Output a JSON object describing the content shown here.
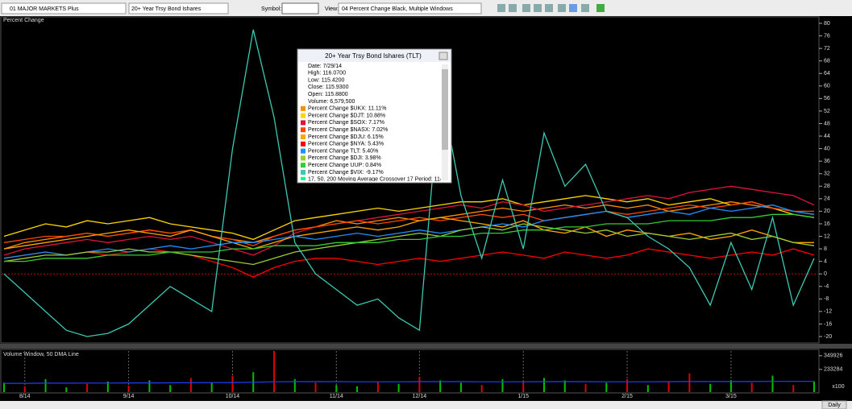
{
  "toolbar": {
    "workspace": "01 MAJOR MARKETS Plus",
    "security": "20+ Year Trsy Bond Ishares",
    "symbol_label": "Symbol:",
    "view_label": "View:",
    "view": "04 Percent Change Black, Multiple Windows"
  },
  "popup": {
    "title": "20+ Year Trsy Bond Ishares (TLT)",
    "lines": [
      "Date: 7/29/14",
      "High: 116.0700",
      "Low: 115.4200",
      "Close: 115.9300",
      "Open: 115.8800",
      "Volume: 6,579,500"
    ],
    "footer": "17, 50, 200 Moving Average Crossover 17 Period: 114.0794"
  },
  "status": {
    "period": "Daily"
  },
  "chart_data": [
    {
      "type": "line",
      "title": "Percent Change",
      "ylim": [
        -20,
        80
      ],
      "yticks": [
        80,
        76,
        72,
        68,
        64,
        60,
        56,
        52,
        48,
        44,
        40,
        36,
        32,
        28,
        24,
        20,
        16,
        12,
        8,
        4,
        0,
        -4,
        -8,
        -12,
        -16,
        -20
      ],
      "reference_line": 0,
      "series": [
        {
          "name": "Percent Change $UKX: 11.11%",
          "color": "#ff8c00",
          "values": [
            8,
            10,
            11,
            12,
            13,
            12,
            13,
            14,
            13,
            14,
            12,
            11,
            10,
            12,
            14,
            15,
            17,
            16,
            17,
            18,
            17,
            18,
            19,
            20,
            21,
            20,
            21,
            22,
            21,
            22,
            21,
            22,
            20,
            21,
            22,
            23,
            22,
            21,
            20,
            19
          ]
        },
        {
          "name": "Percent Change $DJT: 10.88%",
          "color": "#ffd700",
          "values": [
            12,
            14,
            16,
            15,
            17,
            16,
            17,
            18,
            16,
            15,
            14,
            13,
            11,
            14,
            17,
            18,
            19,
            20,
            21,
            20,
            21,
            22,
            23,
            23,
            24,
            22,
            23,
            24,
            25,
            24,
            23,
            24,
            22,
            23,
            24,
            22,
            23,
            21,
            19,
            18
          ]
        },
        {
          "name": "Percent Change $SOX: 7.17%",
          "color": "#dc143c",
          "values": [
            6,
            8,
            9,
            10,
            11,
            10,
            11,
            12,
            11,
            12,
            10,
            8,
            6,
            9,
            13,
            15,
            16,
            17,
            18,
            19,
            20,
            21,
            22,
            21,
            23,
            22,
            20,
            21,
            22,
            23,
            24,
            25,
            24,
            26,
            27,
            28,
            27,
            26,
            25,
            22
          ]
        },
        {
          "name": "Percent Change $NASX: 7.02%",
          "color": "#ff4500",
          "values": [
            10,
            11,
            12,
            12,
            13,
            12,
            13,
            14,
            13,
            14,
            12,
            11,
            9,
            12,
            14,
            15,
            16,
            17,
            16,
            17,
            18,
            17,
            18,
            19,
            18,
            19,
            17,
            18,
            19,
            20,
            19,
            20,
            21,
            22,
            21,
            22,
            23,
            21,
            20,
            20
          ]
        },
        {
          "name": "Percent Change $DJU: 6.15%",
          "color": "#ffa500",
          "values": [
            8,
            9,
            10,
            11,
            12,
            13,
            14,
            13,
            12,
            14,
            12,
            10,
            8,
            10,
            12,
            13,
            14,
            15,
            14,
            15,
            17,
            18,
            17,
            16,
            15,
            17,
            14,
            13,
            15,
            12,
            14,
            13,
            12,
            13,
            11,
            12,
            14,
            12,
            10,
            10
          ]
        },
        {
          "name": "Percent Change $NYA: 5.43%",
          "color": "#ff0000",
          "values": [
            5,
            6,
            7,
            6,
            7,
            6,
            7,
            8,
            7,
            6,
            4,
            2,
            -1,
            2,
            4,
            5,
            5,
            4,
            3,
            4,
            5,
            4,
            5,
            6,
            7,
            6,
            5,
            7,
            6,
            5,
            6,
            8,
            7,
            6,
            5,
            6,
            7,
            6,
            8,
            6
          ]
        },
        {
          "name": "Percent Change TLT: 5.40%",
          "color": "#1e90ff",
          "values": [
            5,
            6,
            7,
            6,
            7,
            8,
            7,
            8,
            9,
            8,
            9,
            10,
            10,
            11,
            12,
            11,
            12,
            13,
            12,
            13,
            14,
            13,
            14,
            15,
            16,
            15,
            17,
            18,
            19,
            20,
            18,
            19,
            20,
            19,
            21,
            20,
            21,
            22,
            20,
            19
          ]
        },
        {
          "name": "Percent Change $DJI: 3.98%",
          "color": "#9acd32",
          "values": [
            4,
            5,
            6,
            6,
            7,
            7,
            8,
            7,
            7,
            6,
            5,
            4,
            3,
            5,
            7,
            8,
            9,
            10,
            11,
            12,
            13,
            12,
            14,
            15,
            14,
            16,
            15,
            14,
            13,
            14,
            12,
            13,
            12,
            11,
            12,
            13,
            11,
            12,
            10,
            9
          ]
        },
        {
          "name": "Percent Change UUP: 0.84%",
          "color": "#32cd32",
          "values": [
            4,
            4,
            5,
            5,
            5,
            6,
            6,
            6,
            7,
            7,
            7,
            8,
            8,
            9,
            9,
            9,
            10,
            10,
            10,
            11,
            11,
            12,
            12,
            13,
            13,
            14,
            14,
            15,
            15,
            16,
            16,
            16,
            17,
            17,
            17,
            18,
            18,
            19,
            19,
            18
          ]
        },
        {
          "name": "Percent Change $VIX: -9.17%",
          "color": "#3cc9b4",
          "values": [
            0,
            -6,
            -12,
            -18,
            -20,
            -19,
            -16,
            -10,
            -4,
            -8,
            -12,
            40,
            78,
            50,
            10,
            0,
            -5,
            -10,
            -8,
            -14,
            -18,
            60,
            25,
            5,
            30,
            8,
            45,
            28,
            35,
            20,
            18,
            12,
            8,
            2,
            -10,
            10,
            -5,
            18,
            -10,
            5
          ]
        }
      ]
    },
    {
      "type": "bar",
      "title": "Volume Window, 50 DMA Line",
      "categories": [
        null,
        "8/14",
        null,
        null,
        null,
        null,
        "9/14",
        null,
        null,
        null,
        null,
        "10/14",
        null,
        null,
        null,
        null,
        "11/14",
        null,
        null,
        null,
        "12/14",
        null,
        null,
        null,
        null,
        "1/15",
        null,
        null,
        null,
        null,
        "2/15",
        null,
        null,
        null,
        null,
        "3/15",
        null,
        null,
        null,
        null
      ],
      "ylim": [
        40000,
        390000
      ],
      "yticks": [
        349926,
        233284
      ],
      "unit_label": "x100",
      "values": [
        120000,
        90000,
        150000,
        80000,
        110000,
        130000,
        95000,
        140000,
        100000,
        160000,
        120000,
        180000,
        210000,
        390000,
        150000,
        120000,
        100000,
        90000,
        130000,
        110000,
        170000,
        140000,
        120000,
        100000,
        150000,
        130000,
        160000,
        140000,
        110000,
        120000,
        150000,
        100000,
        130000,
        200000,
        110000,
        140000,
        120000,
        180000,
        100000,
        130000
      ],
      "colors": [
        "#00c000",
        "#e00000",
        "#00c000",
        "#00c000",
        "#e00000",
        "#00c000",
        "#e00000",
        "#00c000",
        "#00c000",
        "#e00000",
        "#00c000",
        "#e00000",
        "#00c000",
        "#e00000",
        "#00c000",
        "#e00000",
        "#00c000",
        "#00c000",
        "#e00000",
        "#00c000",
        "#e00000",
        "#00c000",
        "#00c000",
        "#e00000",
        "#00c000",
        "#e00000",
        "#00c000",
        "#00c000",
        "#e00000",
        "#00c000",
        "#e00000",
        "#00c000",
        "#e00000",
        "#e00000",
        "#00c000",
        "#00c000",
        "#e00000",
        "#00c000",
        "#e00000",
        "#00c000"
      ],
      "dma": {
        "color": "#2040ff",
        "values": [
          115000,
          115000,
          116000,
          116000,
          117000,
          117000,
          118000,
          118000,
          119000,
          120000,
          121000,
          122000,
          124000,
          128000,
          129000,
          129000,
          129000,
          128000,
          128000,
          128000,
          129000,
          129000,
          129000,
          128000,
          128000,
          128000,
          129000,
          129000,
          129000,
          128000,
          128000,
          128000,
          129000,
          130000,
          130000,
          130000,
          130000,
          131000,
          131000,
          131000
        ]
      }
    }
  ]
}
